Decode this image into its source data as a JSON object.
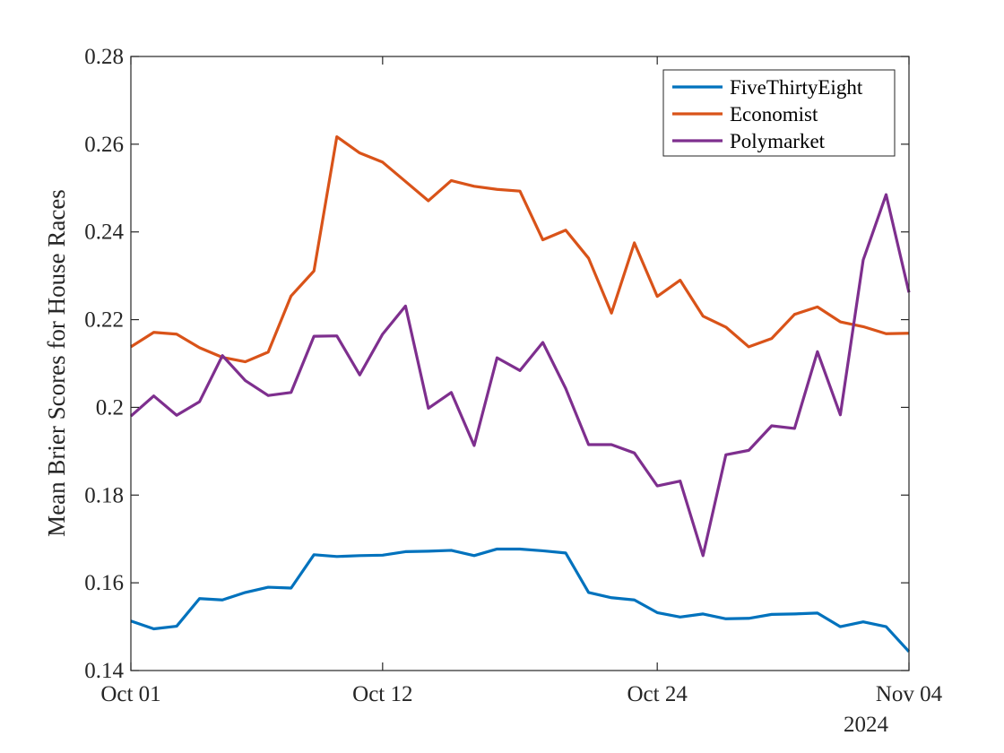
{
  "chart_data": {
    "type": "line",
    "title": "",
    "xlabel": "",
    "ylabel": "Mean Brier Scores for House Races",
    "x_start": "2024-10-01",
    "x_end": "2024-11-04",
    "xlim": [
      "2024-10-01",
      "2024-11-04"
    ],
    "x_ticks": [
      "Oct 01",
      "Oct 12",
      "Oct 24",
      "Nov 04"
    ],
    "x_tick_dates": [
      "2024-10-01",
      "2024-10-12",
      "2024-10-24",
      "2024-11-04"
    ],
    "x_secondary_label": "2024",
    "ylim": [
      0.14,
      0.28
    ],
    "y_ticks": [
      "0.14",
      "0.16",
      "0.18",
      "0.2",
      "0.22",
      "0.24",
      "0.26",
      "0.28"
    ],
    "grid": false,
    "legend_position": "top-right",
    "series": [
      {
        "name": "FiveThirtyEight",
        "color": "#0072BD",
        "values": [
          0.1513,
          0.1495,
          0.1501,
          0.1564,
          0.1561,
          0.1578,
          0.159,
          0.1588,
          0.1664,
          0.166,
          0.1662,
          0.1663,
          0.1671,
          0.1672,
          0.1674,
          0.1662,
          0.1677,
          0.1677,
          0.1673,
          0.1668,
          0.1578,
          0.1566,
          0.1561,
          0.1532,
          0.1522,
          0.1529,
          0.1518,
          0.1519,
          0.1528,
          0.1529,
          0.1531,
          0.15,
          0.1511,
          0.15,
          0.1443
        ]
      },
      {
        "name": "Economist",
        "color": "#D95319",
        "values": [
          0.2138,
          0.2171,
          0.2167,
          0.2136,
          0.2114,
          0.2104,
          0.2126,
          0.2254,
          0.2311,
          0.2617,
          0.258,
          0.2559,
          0.2515,
          0.2471,
          0.2517,
          0.2504,
          0.2497,
          0.2493,
          0.2382,
          0.2404,
          0.234,
          0.2215,
          0.2375,
          0.2253,
          0.229,
          0.2208,
          0.2183,
          0.2138,
          0.2157,
          0.2212,
          0.2229,
          0.2195,
          0.2184,
          0.2168,
          0.2169
        ]
      },
      {
        "name": "Polymarket",
        "color": "#7E2F8E",
        "values": [
          0.198,
          0.2026,
          0.1982,
          0.2013,
          0.2118,
          0.2061,
          0.2027,
          0.2034,
          0.2162,
          0.2163,
          0.2074,
          0.2167,
          0.2231,
          0.1998,
          0.2034,
          0.1913,
          0.2113,
          0.2084,
          0.2148,
          0.2043,
          0.1915,
          0.1915,
          0.1896,
          0.1821,
          0.1832,
          0.1662,
          0.1892,
          0.1902,
          0.1958,
          0.1952,
          0.2127,
          0.1983,
          0.2336,
          0.2485,
          0.2262
        ]
      }
    ]
  }
}
